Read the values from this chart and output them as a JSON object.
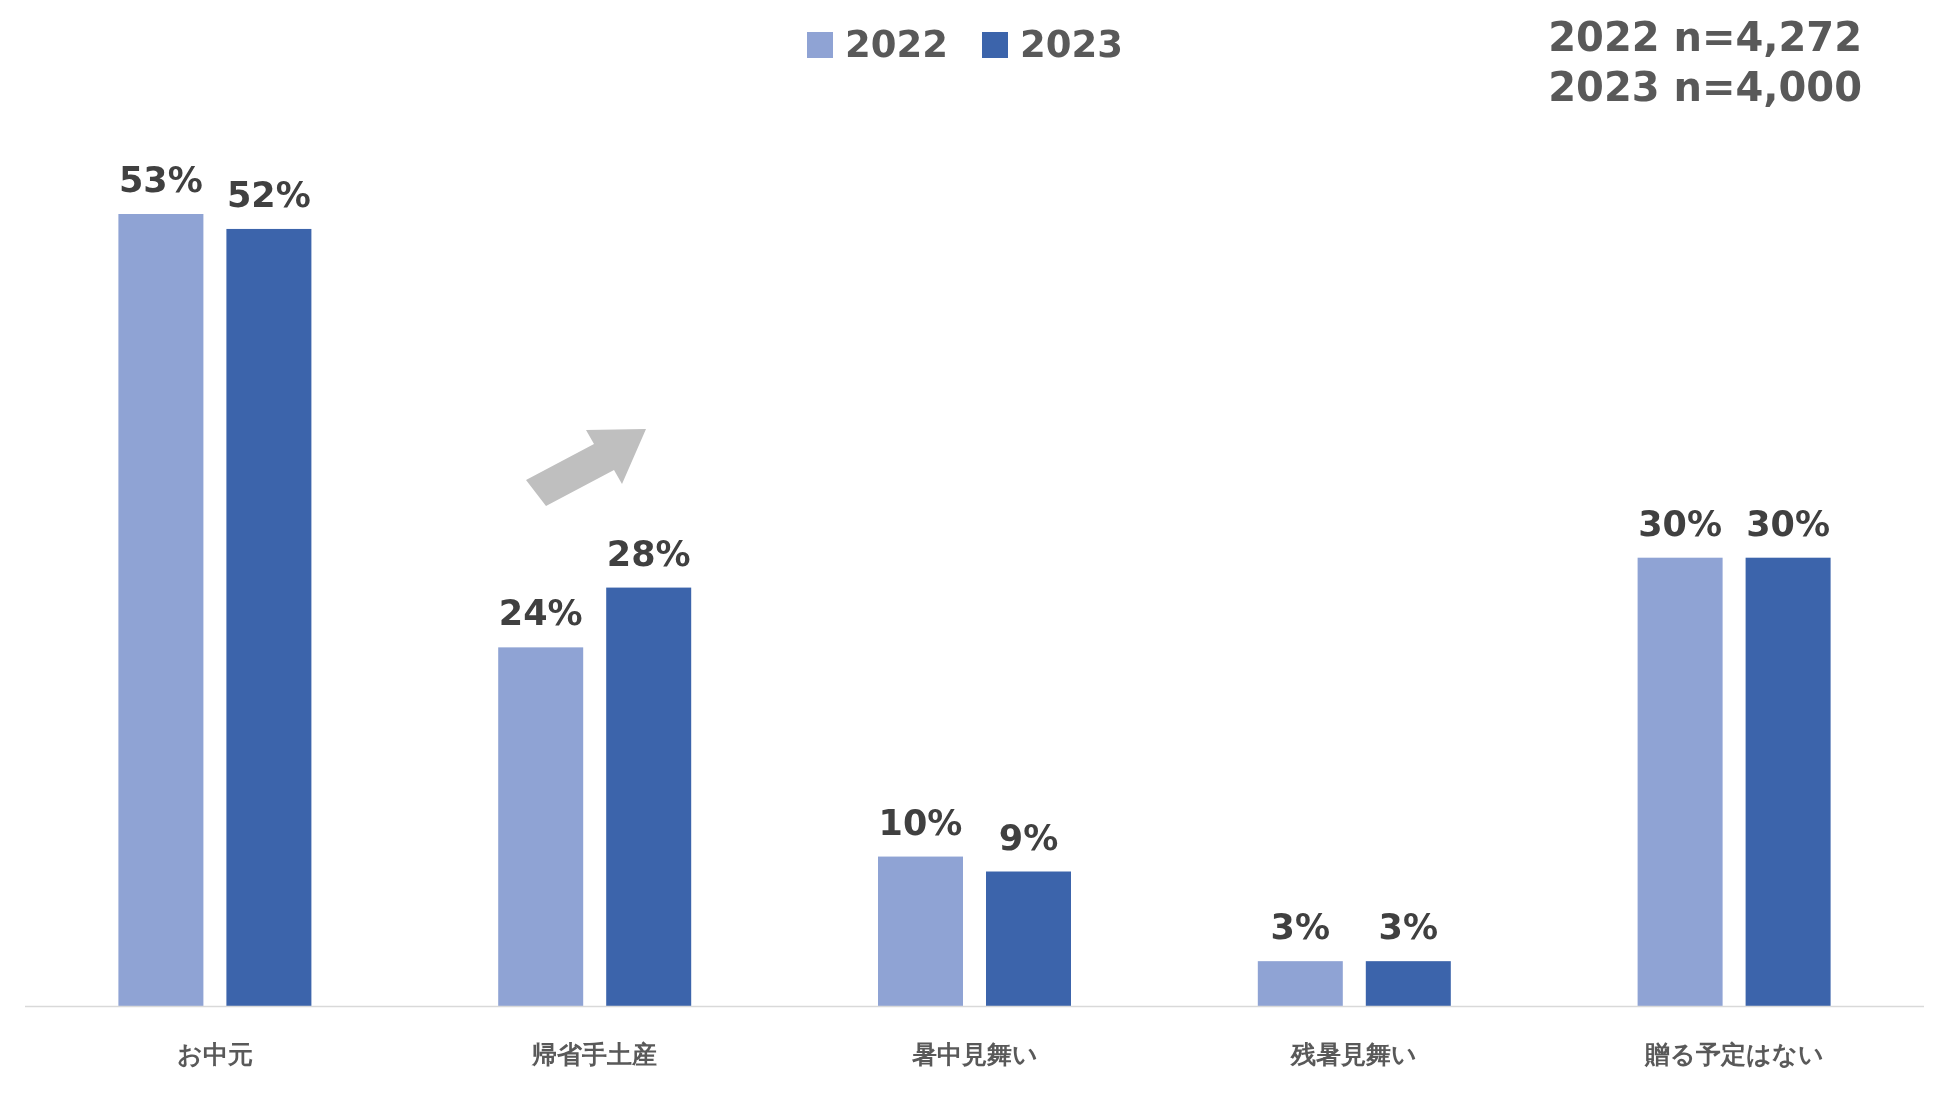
{
  "chart_data": {
    "type": "bar",
    "categories": [
      "お中元",
      "帰省手土産",
      "暑中見舞い",
      "残暑見舞い",
      "贈る予定はない"
    ],
    "series": [
      {
        "name": "2022",
        "color": "#8fa3d4",
        "values": [
          53,
          24,
          10,
          3,
          30
        ],
        "value_labels": [
          "53%",
          "24%",
          "10%",
          "3%",
          "30%"
        ]
      },
      {
        "name": "2023",
        "color": "#3c64ab",
        "values": [
          52,
          28,
          9,
          3,
          30
        ],
        "value_labels": [
          "52%",
          "28%",
          "9%",
          "3%",
          "30%"
        ]
      }
    ],
    "annotations": [
      "2022 n=4,272",
      "2023 n=4,000"
    ],
    "legend": "top"
  }
}
